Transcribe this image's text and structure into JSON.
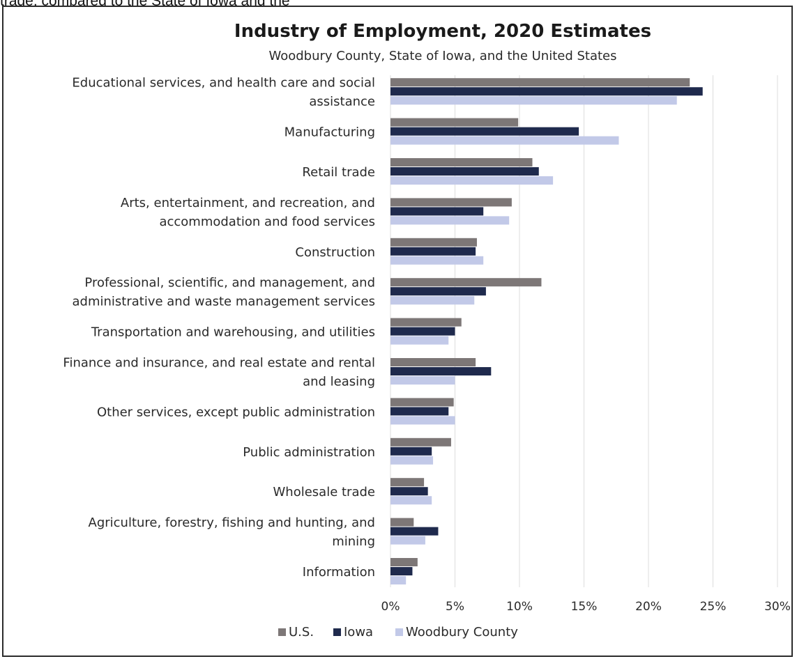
{
  "page": {
    "top_fragment": "trade, compared to the State of Iowa and the"
  },
  "chart_data": {
    "type": "bar",
    "orientation": "horizontal",
    "title": "Industry of Employment, 2020 Estimates",
    "subtitle": "Woodbury County, State of Iowa, and the United States",
    "categories": [
      [
        "Educational services, and health care and social",
        "assistance"
      ],
      [
        "Manufacturing"
      ],
      [
        "Retail trade"
      ],
      [
        "Arts, entertainment, and recreation, and",
        "accommodation and food services"
      ],
      [
        "Construction"
      ],
      [
        "Professional, scientific, and management, and",
        "administrative and waste management services"
      ],
      [
        "Transportation and warehousing, and utilities"
      ],
      [
        "Finance and insurance, and real estate and rental",
        "and leasing"
      ],
      [
        "Other services, except public administration"
      ],
      [
        "Public administration"
      ],
      [
        "Wholesale trade"
      ],
      [
        "Agriculture, forestry, fishing and hunting, and",
        "mining"
      ],
      [
        "Information"
      ]
    ],
    "series": [
      {
        "name": "U.S.",
        "color": "#7d7777",
        "values": [
          23.2,
          9.9,
          11.0,
          9.4,
          6.7,
          11.7,
          5.5,
          6.6,
          4.9,
          4.7,
          2.6,
          1.8,
          2.1
        ]
      },
      {
        "name": "Iowa",
        "color": "#1f2a4d",
        "values": [
          24.2,
          14.6,
          11.5,
          7.2,
          6.6,
          7.4,
          5.0,
          7.8,
          4.5,
          3.2,
          2.9,
          3.7,
          1.7
        ]
      },
      {
        "name": "Woodbury County",
        "color": "#c2c9e8",
        "values": [
          22.2,
          17.7,
          12.6,
          9.2,
          7.2,
          6.5,
          4.5,
          5.0,
          5.0,
          3.3,
          3.2,
          2.7,
          1.2
        ]
      }
    ],
    "xlim": [
      0,
      30
    ],
    "xticks": [
      "0%",
      "5%",
      "10%",
      "15%",
      "20%",
      "25%",
      "30%"
    ],
    "grid": true,
    "legend_position": "bottom"
  }
}
